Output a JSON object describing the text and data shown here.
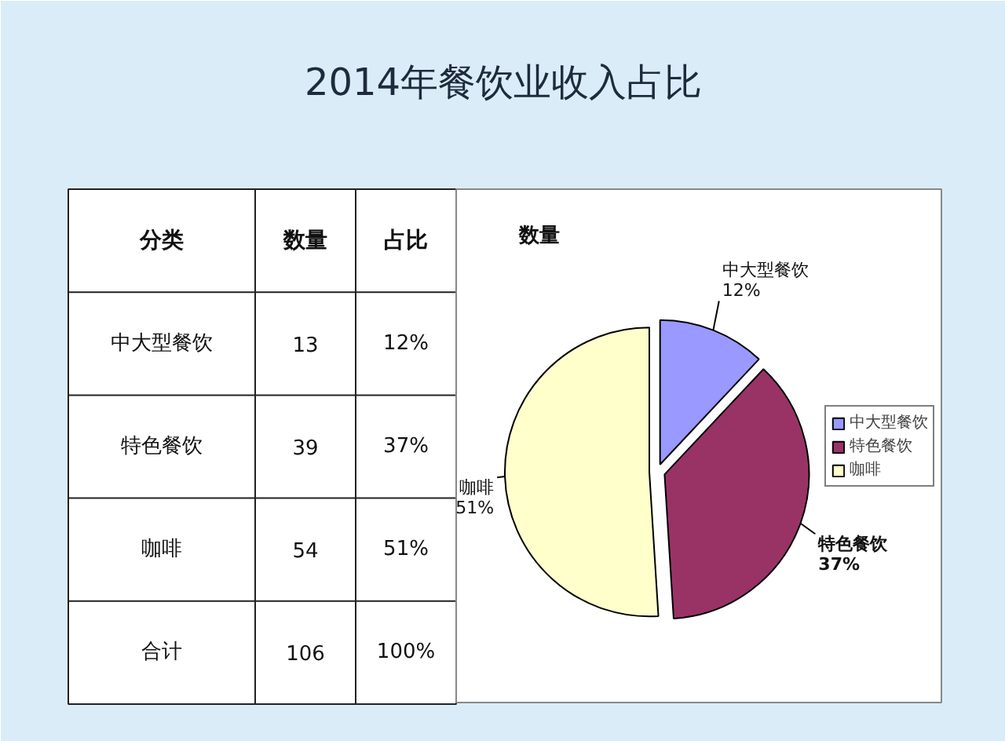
{
  "chart_data": [
    {
      "type": "other",
      "title": "2014年餐饮业收入占比",
      "ylabel": "分类",
      "categories": [
        "中大型餐饮",
        "特色餐饮",
        "咖啡",
        "合计"
      ],
      "series": [
        {
          "name": "数量",
          "values": [
            13,
            39,
            54,
            106
          ]
        }
      ],
      "data_labels": true,
      "annotations": [
        "占比",
        "12%",
        "37%",
        "51%",
        "100%"
      ]
    },
    {
      "type": "pie",
      "title": "数量",
      "categories": [
        "中大型餐饮",
        "特色餐饮",
        "咖啡"
      ],
      "values": [
        12,
        37,
        51
      ],
      "colors": [
        "#9999ff",
        "#993366",
        "#ffffcc"
      ],
      "value_labels": [
        "12%",
        "37%",
        "51%"
      ],
      "legend": "right"
    }
  ]
}
